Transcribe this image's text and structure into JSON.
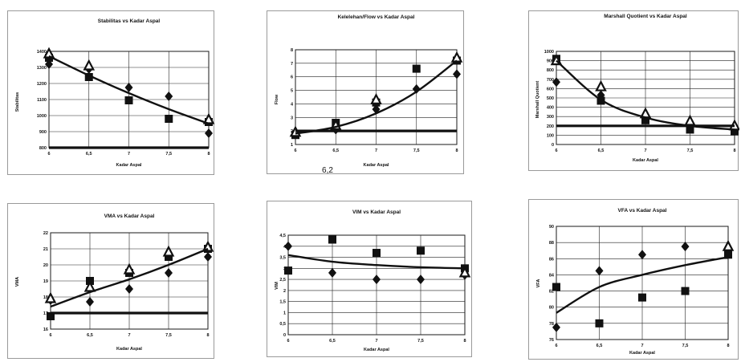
{
  "chart_data": [
    {
      "type": "scatter",
      "title": "Stabilitas vs Kadar Aspal",
      "xlabel": "Kadar Aspal",
      "ylabel": "Stabilitas",
      "x_ticks": [
        "6",
        "6,5",
        "7",
        "7,5",
        "8"
      ],
      "y_ticks": [
        "800",
        "900",
        "1000",
        "1100",
        "1200",
        "1300",
        "1400"
      ],
      "xlim": [
        6,
        8
      ],
      "ylim": [
        800,
        1400
      ],
      "grid": true,
      "series": [
        {
          "marker": "diamond",
          "x": [
            6,
            6.5,
            7,
            7.5,
            8
          ],
          "y": [
            1320,
            1290,
            1175,
            1120,
            890
          ]
        },
        {
          "marker": "square",
          "x": [
            6,
            6.5,
            7,
            7.5,
            8
          ],
          "y": [
            1360,
            1240,
            1095,
            980,
            960
          ]
        },
        {
          "marker": "triangle",
          "x": [
            6,
            6.5,
            8
          ],
          "y": [
            1385,
            1310,
            975
          ]
        },
        {
          "marker": "flat-line",
          "x": [
            6,
            8
          ],
          "y": [
            800,
            800
          ]
        },
        {
          "marker": "trend",
          "x": [
            6,
            6.5,
            7,
            7.5,
            8
          ],
          "y": [
            1370,
            1250,
            1140,
            1040,
            950
          ]
        }
      ]
    },
    {
      "type": "scatter",
      "title": "Kelelehan/Flow vs Kadar Aspal",
      "xlabel": "Kadar Aspal",
      "ylabel": "Flow",
      "x_ticks": [
        "6",
        "6,5",
        "7",
        "7,5",
        "8"
      ],
      "y_ticks": [
        "1",
        "2",
        "3",
        "4",
        "5",
        "6",
        "7",
        "8"
      ],
      "xlim": [
        6,
        8
      ],
      "ylim": [
        1,
        8
      ],
      "grid": true,
      "annotation": "6,2",
      "series": [
        {
          "marker": "diamond",
          "x": [
            6,
            6.5,
            7,
            7.5,
            8
          ],
          "y": [
            1.8,
            2.1,
            3.6,
            5.1,
            6.2
          ]
        },
        {
          "marker": "square",
          "x": [
            6,
            6.5,
            7,
            7.5,
            8
          ],
          "y": [
            1.7,
            2.6,
            4.1,
            6.6,
            7.2
          ]
        },
        {
          "marker": "triangle",
          "x": [
            6,
            6.5,
            7,
            8
          ],
          "y": [
            1.9,
            2.4,
            4.3,
            7.4
          ]
        },
        {
          "marker": "flat-line",
          "x": [
            6,
            8
          ],
          "y": [
            2,
            2
          ]
        },
        {
          "marker": "trend",
          "x": [
            6,
            6.5,
            7,
            7.5,
            8
          ],
          "y": [
            1.8,
            2.3,
            3.3,
            4.9,
            7.2
          ]
        }
      ]
    },
    {
      "type": "scatter",
      "title": "Marshall Quotient vs Kadar Aspal",
      "xlabel": "Kadar Aspal",
      "ylabel": "Marshall Quotient",
      "x_ticks": [
        "6",
        "6,5",
        "7",
        "7,5",
        "8"
      ],
      "y_ticks": [
        "0",
        "100",
        "200",
        "300",
        "400",
        "500",
        "600",
        "700",
        "800",
        "900",
        "1000"
      ],
      "xlim": [
        6,
        8
      ],
      "ylim": [
        0,
        1000
      ],
      "grid": true,
      "series": [
        {
          "marker": "diamond",
          "x": [
            6,
            6.5,
            7,
            7.5,
            8
          ],
          "y": [
            670,
            530,
            310,
            210,
            180
          ]
        },
        {
          "marker": "square",
          "x": [
            6,
            6.5,
            7,
            7.5,
            8
          ],
          "y": [
            920,
            470,
            260,
            160,
            140
          ]
        },
        {
          "marker": "triangle",
          "x": [
            6,
            6.5,
            7,
            7.5,
            8
          ],
          "y": [
            900,
            620,
            330,
            250,
            200
          ]
        },
        {
          "marker": "flat-line",
          "x": [
            6,
            8
          ],
          "y": [
            200,
            200
          ]
        },
        {
          "marker": "trend",
          "x": [
            6,
            6.5,
            7,
            7.5,
            8
          ],
          "y": [
            900,
            480,
            290,
            200,
            160
          ]
        }
      ]
    },
    {
      "type": "scatter",
      "title": "VMA vs Kadar Aspal",
      "xlabel": "Kadar Aspal",
      "ylabel": "VMA",
      "x_ticks": [
        "6",
        "6,5",
        "7",
        "7,5",
        "8"
      ],
      "y_ticks": [
        "16",
        "17",
        "18",
        "19",
        "20",
        "21",
        "22"
      ],
      "xlim": [
        6,
        8
      ],
      "ylim": [
        16,
        22
      ],
      "grid": true,
      "series": [
        {
          "marker": "diamond",
          "x": [
            6,
            6.5,
            7,
            7.5,
            8
          ],
          "y": [
            17.8,
            17.7,
            18.5,
            19.5,
            20.5
          ]
        },
        {
          "marker": "square",
          "x": [
            6,
            6.5,
            7,
            7.5,
            8
          ],
          "y": [
            16.8,
            19,
            19.5,
            20.5,
            21
          ]
        },
        {
          "marker": "triangle",
          "x": [
            6,
            6.5,
            7,
            7.5,
            8
          ],
          "y": [
            17.9,
            18.6,
            19.7,
            20.8,
            21.1
          ]
        },
        {
          "marker": "flat-line",
          "x": [
            6,
            8
          ],
          "y": [
            17,
            17
          ]
        },
        {
          "marker": "trend",
          "x": [
            6,
            6.5,
            7,
            7.5,
            8
          ],
          "y": [
            17.4,
            18.3,
            19.1,
            20,
            21
          ]
        }
      ]
    },
    {
      "type": "scatter",
      "title": "VIM vs Kadar Aspal",
      "xlabel": "Kadar Aspal",
      "ylabel": "VIM",
      "x_ticks": [
        "6",
        "6,5",
        "7",
        "7,5",
        "8"
      ],
      "y_ticks": [
        "0",
        "0,5",
        "1",
        "1,5",
        "2",
        "2,5",
        "3",
        "3,5",
        "4",
        "4,5"
      ],
      "xlim": [
        6,
        8
      ],
      "ylim": [
        0,
        4.5
      ],
      "grid": true,
      "series": [
        {
          "marker": "diamond",
          "x": [
            6,
            6.5,
            7,
            7.5,
            8
          ],
          "y": [
            4,
            2.8,
            2.5,
            2.5,
            2.7
          ]
        },
        {
          "marker": "square",
          "x": [
            6,
            6.5,
            7,
            7.5,
            8
          ],
          "y": [
            2.9,
            4.3,
            3.7,
            3.8,
            3
          ]
        },
        {
          "marker": "triangle",
          "x": [
            8
          ],
          "y": [
            2.8
          ]
        },
        {
          "marker": "trend",
          "x": [
            6,
            6.5,
            7,
            7.5,
            8
          ],
          "y": [
            3.6,
            3.3,
            3.15,
            3.05,
            3
          ]
        }
      ]
    },
    {
      "type": "scatter",
      "title": "VFA vs Kadar Aspal",
      "xlabel": "Kadar Aspal",
      "ylabel": "VFA",
      "x_ticks": [
        "6",
        "6,5",
        "7",
        "7,5",
        "8"
      ],
      "y_ticks": [
        "76",
        "78",
        "80",
        "82",
        "84",
        "86",
        "88",
        "90"
      ],
      "xlim": [
        6,
        8
      ],
      "ylim": [
        76,
        90
      ],
      "grid": true,
      "series": [
        {
          "marker": "diamond",
          "x": [
            6,
            6.5,
            7,
            7.5,
            8
          ],
          "y": [
            77.5,
            84.5,
            86.5,
            87.5,
            86.8
          ]
        },
        {
          "marker": "square",
          "x": [
            6,
            6.5,
            7,
            7.5,
            8
          ],
          "y": [
            82.5,
            78,
            81.2,
            82,
            86.5
          ]
        },
        {
          "marker": "triangle",
          "x": [
            8
          ],
          "y": [
            87.5
          ]
        },
        {
          "marker": "trend",
          "x": [
            6,
            6.5,
            7,
            7.5,
            8
          ],
          "y": [
            79.3,
            82.5,
            84,
            85.2,
            86.2
          ]
        }
      ]
    }
  ]
}
